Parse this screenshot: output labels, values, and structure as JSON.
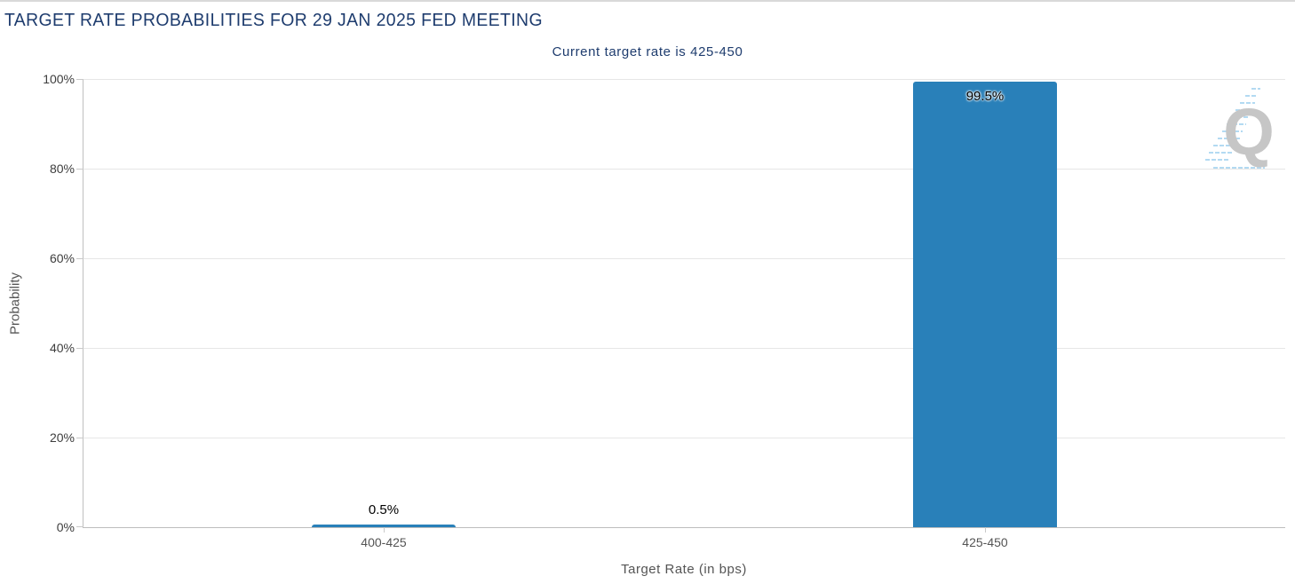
{
  "header": {
    "title": "TARGET RATE PROBABILITIES FOR 29 JAN 2025 FED MEETING",
    "menu_icon": "hamburger-icon"
  },
  "watermark": {
    "letter": "Q"
  },
  "chart_data": {
    "type": "bar",
    "title": "Current target rate is 425-450",
    "categories": [
      "400-425",
      "425-450"
    ],
    "values": [
      0.5,
      99.5
    ],
    "value_labels": [
      "0.5%",
      "99.5%"
    ],
    "xlabel": "Target Rate (in bps)",
    "ylabel": "Probability",
    "ylim": [
      0,
      100
    ],
    "yticks": [
      0,
      20,
      40,
      60,
      80,
      100
    ],
    "ytick_labels": [
      "0%",
      "20%",
      "40%",
      "60%",
      "80%",
      "100%"
    ],
    "grid": true,
    "legend_position": "none",
    "bar_color": "#2980b9",
    "colors": {
      "title_text": "#1e3c6e",
      "gridline": "#e6e6e6",
      "axis_line": "#c0c0c0",
      "tick_label": "#3d3d3d",
      "axis_title": "#555555",
      "watermark_gray": "#c6c6c6",
      "watermark_blue": "#b3daf2"
    }
  }
}
